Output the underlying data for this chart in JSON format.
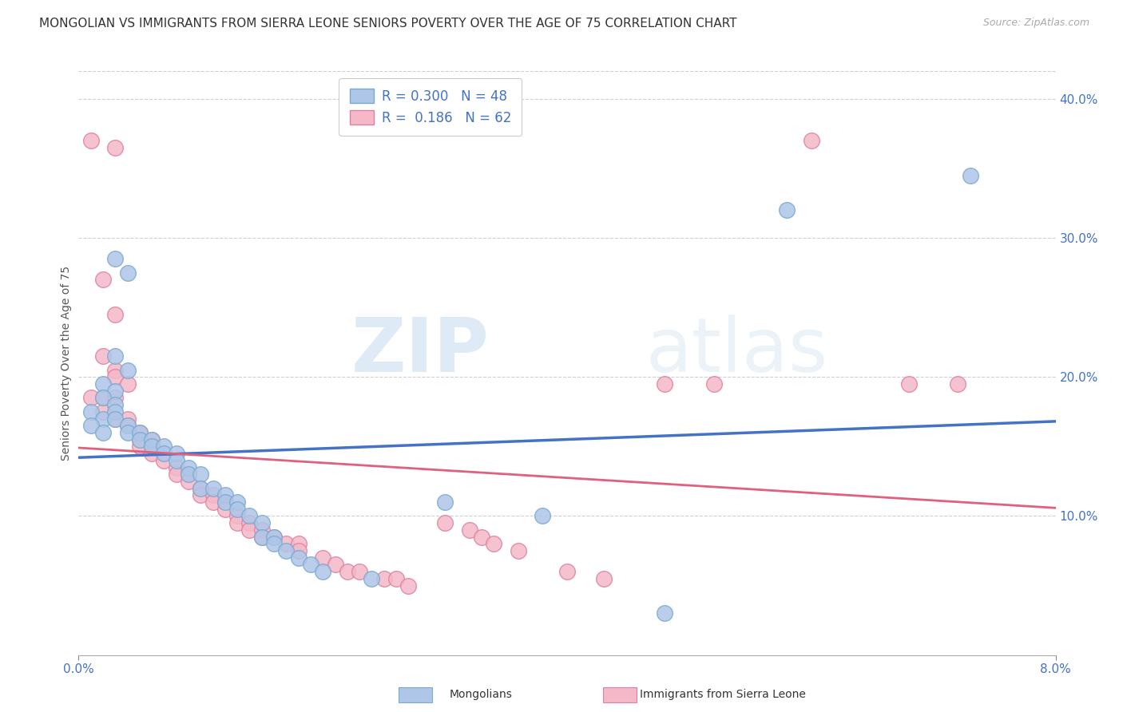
{
  "title": "MONGOLIAN VS IMMIGRANTS FROM SIERRA LEONE SENIORS POVERTY OVER THE AGE OF 75 CORRELATION CHART",
  "source": "Source: ZipAtlas.com",
  "ylabel": "Seniors Poverty Over the Age of 75",
  "right_yticks": [
    "40.0%",
    "30.0%",
    "20.0%",
    "10.0%"
  ],
  "right_ytick_vals": [
    0.4,
    0.3,
    0.2,
    0.1
  ],
  "xmin": 0.0,
  "xmax": 0.08,
  "ymin": 0.0,
  "ymax": 0.42,
  "blue_r": 0.3,
  "blue_n": 48,
  "pink_r": 0.186,
  "pink_n": 62,
  "title_fontsize": 11,
  "axis_label_fontsize": 10,
  "tick_fontsize": 11,
  "title_color": "#333333",
  "right_axis_color": "#4472C4",
  "bottom_axis_color": "#4472C4",
  "watermark_zip": "ZIP",
  "watermark_atlas": "atlas",
  "blue_scatter": [
    [
      0.003,
      0.285
    ],
    [
      0.004,
      0.275
    ],
    [
      0.003,
      0.215
    ],
    [
      0.004,
      0.205
    ],
    [
      0.002,
      0.195
    ],
    [
      0.003,
      0.19
    ],
    [
      0.002,
      0.185
    ],
    [
      0.003,
      0.18
    ],
    [
      0.001,
      0.175
    ],
    [
      0.002,
      0.17
    ],
    [
      0.001,
      0.165
    ],
    [
      0.002,
      0.16
    ],
    [
      0.003,
      0.175
    ],
    [
      0.003,
      0.17
    ],
    [
      0.004,
      0.165
    ],
    [
      0.004,
      0.16
    ],
    [
      0.005,
      0.16
    ],
    [
      0.005,
      0.155
    ],
    [
      0.006,
      0.155
    ],
    [
      0.006,
      0.15
    ],
    [
      0.007,
      0.15
    ],
    [
      0.007,
      0.145
    ],
    [
      0.008,
      0.145
    ],
    [
      0.008,
      0.14
    ],
    [
      0.009,
      0.135
    ],
    [
      0.009,
      0.13
    ],
    [
      0.01,
      0.13
    ],
    [
      0.01,
      0.12
    ],
    [
      0.011,
      0.12
    ],
    [
      0.012,
      0.115
    ],
    [
      0.012,
      0.11
    ],
    [
      0.013,
      0.11
    ],
    [
      0.013,
      0.105
    ],
    [
      0.014,
      0.1
    ],
    [
      0.015,
      0.095
    ],
    [
      0.015,
      0.085
    ],
    [
      0.016,
      0.085
    ],
    [
      0.016,
      0.08
    ],
    [
      0.017,
      0.075
    ],
    [
      0.018,
      0.07
    ],
    [
      0.019,
      0.065
    ],
    [
      0.02,
      0.06
    ],
    [
      0.024,
      0.055
    ],
    [
      0.03,
      0.11
    ],
    [
      0.038,
      0.1
    ],
    [
      0.048,
      0.03
    ],
    [
      0.058,
      0.32
    ],
    [
      0.073,
      0.345
    ]
  ],
  "pink_scatter": [
    [
      0.001,
      0.37
    ],
    [
      0.003,
      0.365
    ],
    [
      0.002,
      0.27
    ],
    [
      0.003,
      0.245
    ],
    [
      0.002,
      0.215
    ],
    [
      0.003,
      0.205
    ],
    [
      0.003,
      0.2
    ],
    [
      0.004,
      0.195
    ],
    [
      0.001,
      0.185
    ],
    [
      0.002,
      0.185
    ],
    [
      0.003,
      0.185
    ],
    [
      0.002,
      0.175
    ],
    [
      0.003,
      0.17
    ],
    [
      0.004,
      0.17
    ],
    [
      0.004,
      0.165
    ],
    [
      0.005,
      0.16
    ],
    [
      0.005,
      0.155
    ],
    [
      0.006,
      0.155
    ],
    [
      0.005,
      0.15
    ],
    [
      0.006,
      0.15
    ],
    [
      0.006,
      0.145
    ],
    [
      0.007,
      0.145
    ],
    [
      0.007,
      0.14
    ],
    [
      0.008,
      0.135
    ],
    [
      0.008,
      0.13
    ],
    [
      0.009,
      0.13
    ],
    [
      0.009,
      0.125
    ],
    [
      0.01,
      0.12
    ],
    [
      0.01,
      0.115
    ],
    [
      0.011,
      0.115
    ],
    [
      0.011,
      0.11
    ],
    [
      0.012,
      0.11
    ],
    [
      0.012,
      0.105
    ],
    [
      0.013,
      0.1
    ],
    [
      0.013,
      0.095
    ],
    [
      0.014,
      0.095
    ],
    [
      0.014,
      0.09
    ],
    [
      0.015,
      0.09
    ],
    [
      0.015,
      0.085
    ],
    [
      0.016,
      0.085
    ],
    [
      0.017,
      0.08
    ],
    [
      0.018,
      0.08
    ],
    [
      0.018,
      0.075
    ],
    [
      0.02,
      0.07
    ],
    [
      0.021,
      0.065
    ],
    [
      0.022,
      0.06
    ],
    [
      0.023,
      0.06
    ],
    [
      0.025,
      0.055
    ],
    [
      0.026,
      0.055
    ],
    [
      0.027,
      0.05
    ],
    [
      0.03,
      0.095
    ],
    [
      0.032,
      0.09
    ],
    [
      0.033,
      0.085
    ],
    [
      0.034,
      0.08
    ],
    [
      0.036,
      0.075
    ],
    [
      0.04,
      0.06
    ],
    [
      0.043,
      0.055
    ],
    [
      0.048,
      0.195
    ],
    [
      0.052,
      0.195
    ],
    [
      0.06,
      0.37
    ],
    [
      0.068,
      0.195
    ],
    [
      0.072,
      0.195
    ]
  ],
  "blue_line_color": "#4472C4",
  "pink_line_color": "#E06080",
  "blue_scatter_facecolor": "#AEC6E8",
  "blue_scatter_edgecolor": "#7AAAD0",
  "pink_scatter_facecolor": "#F4B8C8",
  "pink_scatter_edgecolor": "#E080A0",
  "grid_color": "#d0d0d0",
  "background_color": "#ffffff"
}
